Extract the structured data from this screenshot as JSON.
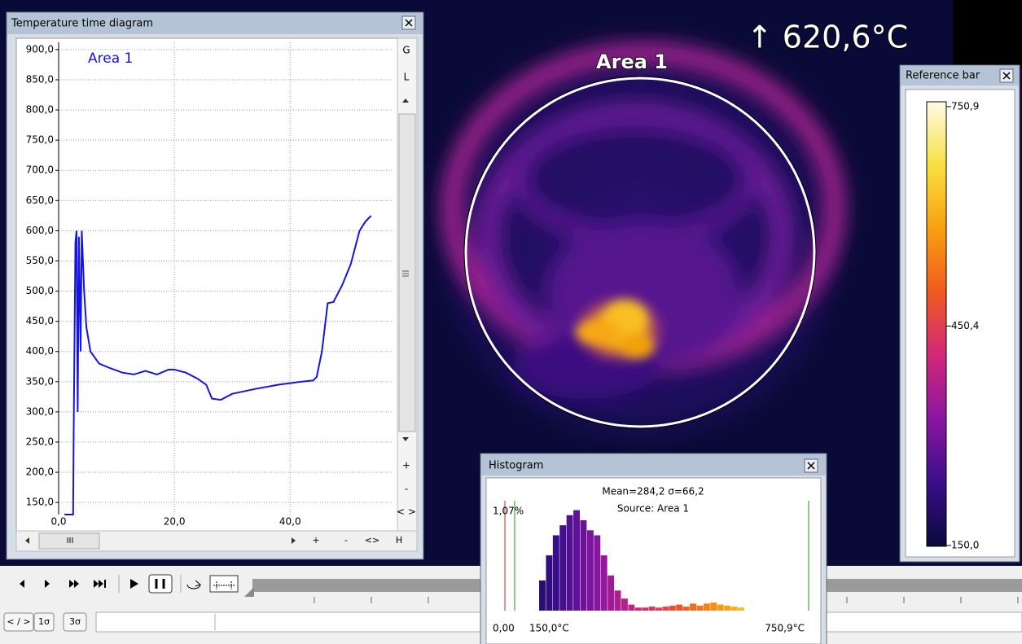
{
  "chart_data": [
    {
      "type": "line",
      "x": [
        1.0,
        2.5,
        2.6,
        2.9,
        3.1,
        3.3,
        3.5,
        3.8,
        4.0,
        4.4,
        4.8,
        5.5,
        7,
        9,
        11,
        13,
        15,
        17,
        19,
        20,
        22,
        24,
        25.5,
        26.5,
        28,
        30,
        34,
        38,
        42,
        44,
        44.6,
        45.5,
        46.5,
        47.5,
        49,
        50.5,
        52,
        53,
        54
      ],
      "series": [
        {
          "name": "Area 1",
          "color": "#1414e6",
          "values": [
            130,
            130,
            270,
            580,
            600,
            300,
            590,
            400,
            600,
            500,
            440,
            400,
            380,
            372,
            365,
            362,
            368,
            362,
            370,
            370,
            365,
            355,
            345,
            322,
            320,
            330,
            338,
            345,
            350,
            352,
            358,
            400,
            480,
            482,
            510,
            545,
            600,
            615,
            625
          ]
        }
      ],
      "xlim": [
        0,
        57.7
      ],
      "ylim": [
        130,
        912
      ],
      "xticks": [
        {
          "value": 0,
          "label": "0,0"
        },
        {
          "value": 20,
          "label": "20,0"
        },
        {
          "value": 40,
          "label": "40,0"
        }
      ],
      "yticks": [
        {
          "value": 150,
          "label": "150,0"
        },
        {
          "value": 200,
          "label": "200,0"
        },
        {
          "value": 250,
          "label": "250,0"
        },
        {
          "value": 300,
          "label": "300,0"
        },
        {
          "value": 350,
          "label": "350,0"
        },
        {
          "value": 400,
          "label": "400,0"
        },
        {
          "value": 450,
          "label": "450,0"
        },
        {
          "value": 500,
          "label": "500,0"
        },
        {
          "value": 550,
          "label": "550,0"
        },
        {
          "value": 600,
          "label": "600,0"
        },
        {
          "value": 650,
          "label": "650,0"
        },
        {
          "value": 700,
          "label": "700,0"
        },
        {
          "value": 750,
          "label": "750,0"
        },
        {
          "value": 800,
          "label": "800,0"
        },
        {
          "value": 850,
          "label": "850,0"
        },
        {
          "value": 900,
          "label": "900,0"
        }
      ],
      "grid": true
    },
    {
      "type": "histogram",
      "annotations": [
        "Mean=284,2 σ=66,2",
        "Source:  Area 1"
      ],
      "bins": [
        200,
        214,
        228,
        242,
        256,
        270,
        284,
        298,
        312,
        326,
        340,
        354,
        368,
        382,
        396,
        410,
        424,
        438,
        452,
        466,
        480,
        494,
        508,
        522,
        536,
        550,
        564,
        578,
        592,
        606,
        620
      ],
      "values": [
        0.3,
        0.55,
        0.75,
        0.85,
        0.95,
        1.0,
        0.9,
        0.8,
        0.75,
        0.55,
        0.35,
        0.2,
        0.12,
        0.06,
        0.03,
        0.03,
        0.04,
        0.03,
        0.04,
        0.05,
        0.06,
        0.04,
        0.07,
        0.05,
        0.07,
        0.08,
        0.06,
        0.05,
        0.04,
        0.03
      ],
      "xlim": [
        150,
        750.9
      ],
      "ylim": [
        0,
        1.07
      ],
      "xticks": [
        {
          "value": 150,
          "label": "150,0°C"
        },
        {
          "value": 750.9,
          "label": "750,9°C"
        }
      ],
      "yticks": [
        {
          "value": 0,
          "label": "0,00"
        },
        {
          "value": 1.07,
          "label": "1,07%"
        }
      ]
    }
  ],
  "temperature_window": {
    "title": "Temperature time diagram",
    "side_buttons": [
      "G",
      "L",
      "+",
      "-",
      "< >"
    ],
    "scroll_buttons": [
      "+",
      "-",
      "<>",
      "H"
    ],
    "scroll_thumb": "III"
  },
  "histogram_window": {
    "title": "Histogram"
  },
  "reference_bar": {
    "title": "Reference bar",
    "ylim": [
      150,
      750.9
    ],
    "ticks": [
      {
        "value": 750.9,
        "label": "750,9"
      },
      {
        "value": 450.4,
        "label": "450,4"
      },
      {
        "value": 150,
        "label": "150,0"
      }
    ],
    "colors": [
      "#0a0a3a",
      "#3a0e8c",
      "#8a16a0",
      "#d0287a",
      "#f05a20",
      "#f8a010",
      "#f8e040",
      "#fffbe6"
    ]
  },
  "image": {
    "area_label": "Area 1",
    "max_label": "↑ 620,6°C"
  },
  "toolbar": {
    "buttons": [
      "< / >",
      "1σ",
      "3σ"
    ]
  }
}
